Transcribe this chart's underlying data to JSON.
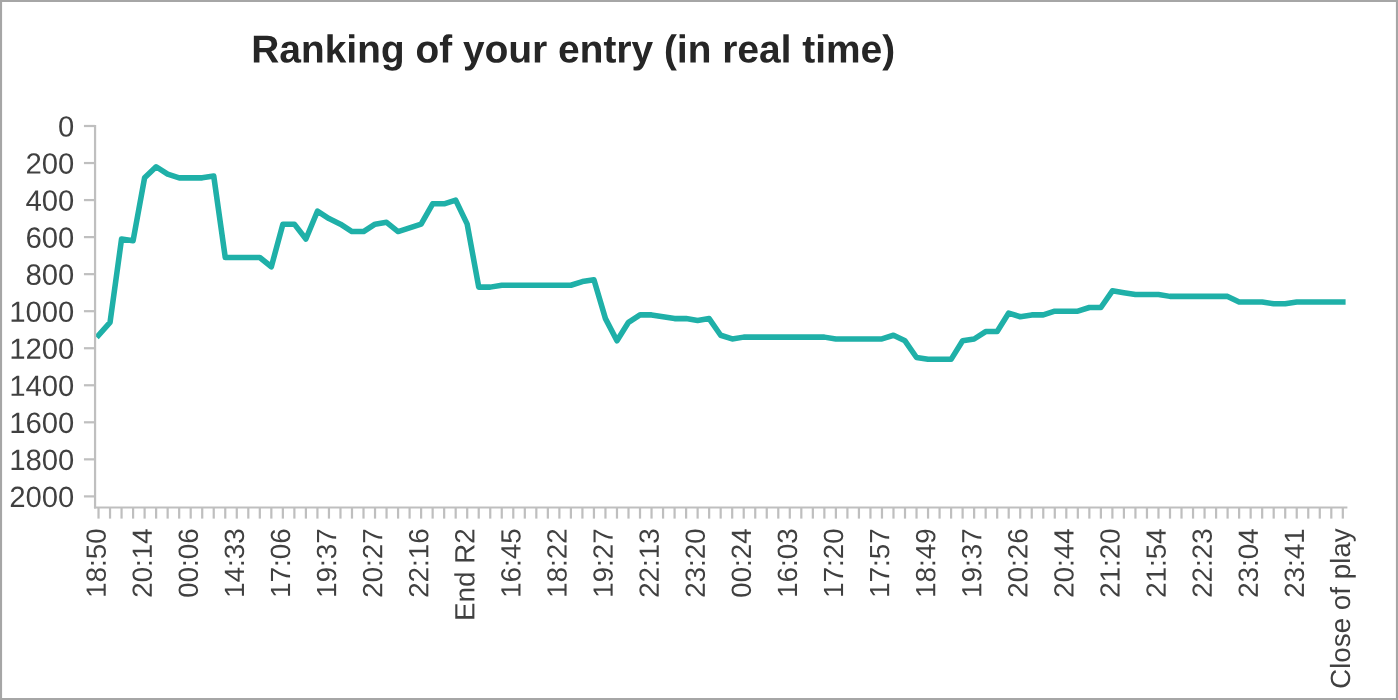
{
  "chart_data": {
    "type": "line",
    "title": "Ranking of your entry (in real time)",
    "categories": [
      "18:50",
      null,
      null,
      null,
      "20:14",
      null,
      null,
      null,
      "00:06",
      null,
      null,
      null,
      "14:33",
      null,
      null,
      null,
      "17:06",
      null,
      null,
      null,
      "19:37",
      null,
      null,
      null,
      "20:27",
      null,
      null,
      null,
      "22:16",
      null,
      null,
      null,
      "End R2",
      null,
      null,
      null,
      "16:45",
      null,
      null,
      null,
      "18:22",
      null,
      null,
      null,
      "19:27",
      null,
      null,
      null,
      "22:13",
      null,
      null,
      null,
      "23:20",
      null,
      null,
      null,
      "00:24",
      null,
      null,
      null,
      "16:03",
      null,
      null,
      null,
      "17:20",
      null,
      null,
      null,
      "17:57",
      null,
      null,
      null,
      "18:49",
      null,
      null,
      null,
      "19:37",
      null,
      null,
      null,
      "20:26",
      null,
      null,
      null,
      "20:44",
      null,
      null,
      null,
      "21:20",
      null,
      null,
      null,
      "21:54",
      null,
      null,
      null,
      "22:23",
      null,
      null,
      null,
      "23:04",
      null,
      null,
      null,
      "23:41",
      null,
      null,
      null,
      "Close of play"
    ],
    "series": [
      {
        "color": "#1fb0a8",
        "values": [
          1130,
          1060,
          610,
          620,
          280,
          220,
          260,
          280,
          280,
          280,
          270,
          710,
          710,
          710,
          710,
          760,
          530,
          530,
          610,
          460,
          500,
          530,
          570,
          570,
          530,
          520,
          570,
          550,
          530,
          420,
          420,
          400,
          530,
          870,
          870,
          860,
          860,
          860,
          860,
          860,
          860,
          860,
          840,
          830,
          1040,
          1160,
          1060,
          1020,
          1020,
          1030,
          1040,
          1040,
          1050,
          1040,
          1130,
          1150,
          1140,
          1140,
          1140,
          1140,
          1140,
          1140,
          1140,
          1140,
          1150,
          1150,
          1150,
          1150,
          1150,
          1130,
          1160,
          1250,
          1260,
          1260,
          1260,
          1160,
          1150,
          1110,
          1110,
          1010,
          1030,
          1020,
          1020,
          1000,
          1000,
          1000,
          980,
          980,
          890,
          900,
          910,
          910,
          910,
          920,
          920,
          920,
          920,
          920,
          920,
          950,
          950,
          950,
          960,
          960,
          950,
          950,
          950,
          950,
          950
        ]
      }
    ],
    "ylim": [
      2060,
      0
    ],
    "yticks": [
      0,
      200,
      400,
      600,
      800,
      1000,
      1200,
      1400,
      1600,
      1800,
      2000
    ],
    "grid": false,
    "marker": "none",
    "line_style": "solid"
  }
}
